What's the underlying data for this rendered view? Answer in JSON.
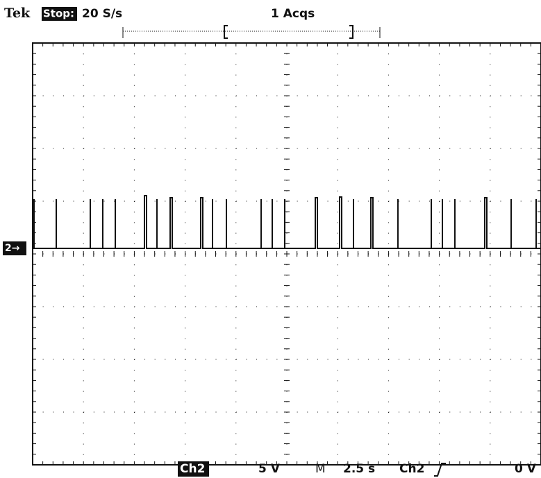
{
  "header": {
    "brand": "Tek",
    "status": "Stop:",
    "sample_rate": "20 S/s",
    "acquisitions": "1 Acqs"
  },
  "channel_marker": "2→",
  "footer": {
    "channel": "Ch2",
    "volts_per_div": "5 V",
    "mode": "M",
    "time_per_div": "2.5 s",
    "trigger_source": "Ch2",
    "trigger_level": "0 V"
  }
}
